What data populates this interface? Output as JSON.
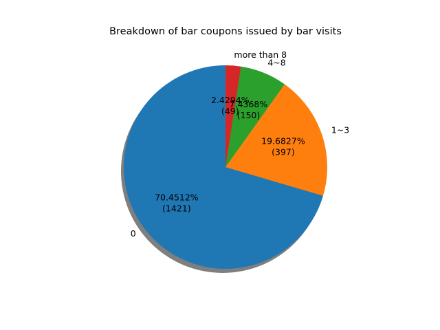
{
  "chart_data": {
    "type": "pie",
    "title": "Breakdown of bar coupons issued by bar visits",
    "slices": [
      {
        "label": "0",
        "value": 1421,
        "percent_label": "70.4512%",
        "count_label": "(1421)",
        "color": "#1f77b4"
      },
      {
        "label": "1~3",
        "value": 397,
        "percent_label": "19.6827%",
        "count_label": "(397)",
        "color": "#ff7f0e"
      },
      {
        "label": "4~8",
        "value": 150,
        "percent_label": "7.4368%",
        "count_label": "(150)",
        "color": "#2ca02c"
      },
      {
        "label": "more than 8",
        "value": 49,
        "percent_label": "2.4294%",
        "count_label": "(49)",
        "color": "#d62728"
      }
    ],
    "start_angle_deg": 90,
    "direction": "counterclockwise",
    "shadow": true,
    "legend": "none"
  }
}
